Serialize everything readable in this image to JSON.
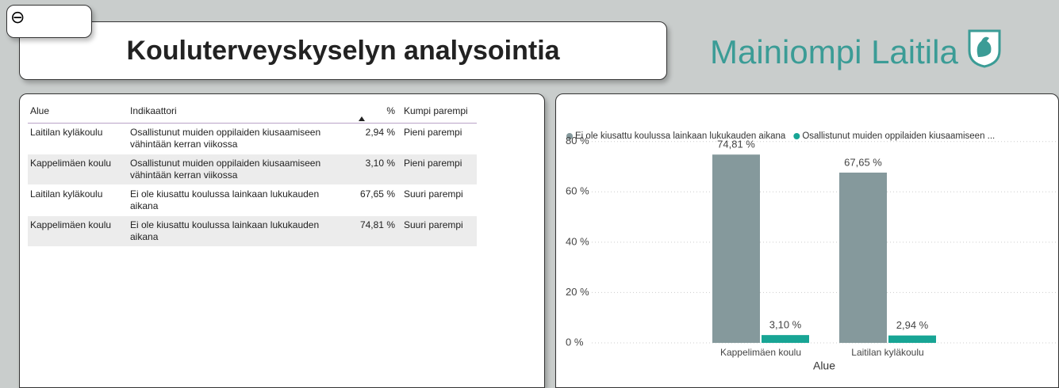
{
  "header": {
    "back": "⊖",
    "title": "Kouluterveyskyselyn analysointia",
    "brand": "Mainiompi Laitila"
  },
  "table": {
    "columns": [
      "Alue",
      "Indikaattori",
      "%",
      "Kumpi parempi"
    ],
    "rows": [
      [
        "Laitilan kyläkoulu",
        "Osallistunut muiden oppilaiden kiusaamiseen vähintään kerran viikossa",
        "2,94 %",
        "Pieni parempi"
      ],
      [
        "Kappelimäen koulu",
        "Osallistunut muiden oppilaiden kiusaamiseen vähintään kerran viikossa",
        "3,10 %",
        "Pieni parempi"
      ],
      [
        "Laitilan kyläkoulu",
        "Ei ole kiusattu koulussa lainkaan lukukauden aikana",
        "67,65 %",
        "Suuri parempi"
      ],
      [
        "Kappelimäen koulu",
        "Ei ole kiusattu koulussa lainkaan lukukauden aikana",
        "74,81 %",
        "Suuri parempi"
      ]
    ]
  },
  "chart_data": {
    "type": "bar",
    "x_label": "Alue",
    "categories": [
      "Kappelimäen koulu",
      "Laitilan kyläkoulu"
    ],
    "series": [
      {
        "name": "Ei ole kiusattu koulussa lainkaan lukukauden aikana",
        "color": "#85999c",
        "values": [
          74.81,
          67.65
        ],
        "value_labels": [
          "74,81 %",
          "67,65 %"
        ]
      },
      {
        "name": "Osallistunut muiden oppilaiden kiusaamiseen ...",
        "color": "#18a595",
        "values": [
          3.1,
          2.94
        ],
        "value_labels": [
          "3,10 %",
          "2,94 %"
        ]
      }
    ],
    "ylim": [
      0,
      84
    ],
    "yticks": [
      {
        "value": 0,
        "label": "0 %"
      },
      {
        "value": 20,
        "label": "20 %"
      },
      {
        "value": 40,
        "label": "40 %"
      },
      {
        "value": 60,
        "label": "60 %"
      },
      {
        "value": 80,
        "label": "80 %"
      }
    ],
    "grid": true,
    "legend": "top"
  }
}
